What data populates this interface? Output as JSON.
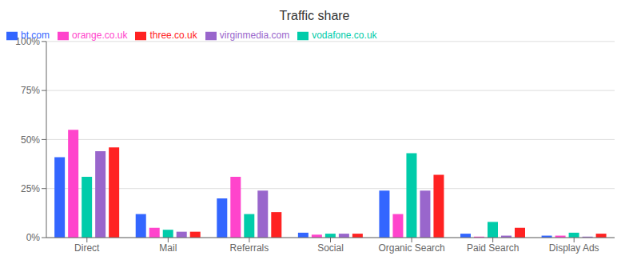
{
  "chart_data": {
    "type": "bar",
    "title": "Traffic share",
    "categories": [
      "Direct",
      "Mail",
      "Referrals",
      "Social",
      "Organic Search",
      "Paid Search",
      "Display Ads"
    ],
    "series": [
      {
        "name": "bt.com",
        "color": "#3366ff",
        "values": [
          41,
          12,
          20,
          2.5,
          24,
          2,
          1
        ]
      },
      {
        "name": "orange.co.uk",
        "color": "#ff44cc",
        "values": [
          55,
          5,
          31,
          1.5,
          12,
          0.5,
          1
        ]
      },
      {
        "name": "vodafone.co.uk",
        "color": "#00ccaa",
        "values": [
          31,
          4,
          12,
          2,
          43,
          8,
          2.5
        ]
      },
      {
        "name": "virginmedia.com",
        "color": "#9966cc",
        "values": [
          44,
          3,
          24,
          2,
          24,
          1,
          0.5
        ]
      },
      {
        "name": "three.co.uk",
        "color": "#ff2222",
        "values": [
          46,
          3,
          13,
          2,
          32,
          5,
          2
        ]
      }
    ],
    "ylim": [
      0,
      100
    ],
    "yticks": [
      {
        "value": 0,
        "label": "0%"
      },
      {
        "value": 25,
        "label": "25%"
      },
      {
        "value": 50,
        "label": "50%"
      },
      {
        "value": 75,
        "label": "75%"
      },
      {
        "value": 100,
        "label": "100%"
      }
    ],
    "grid": true,
    "legend": "upper left"
  }
}
